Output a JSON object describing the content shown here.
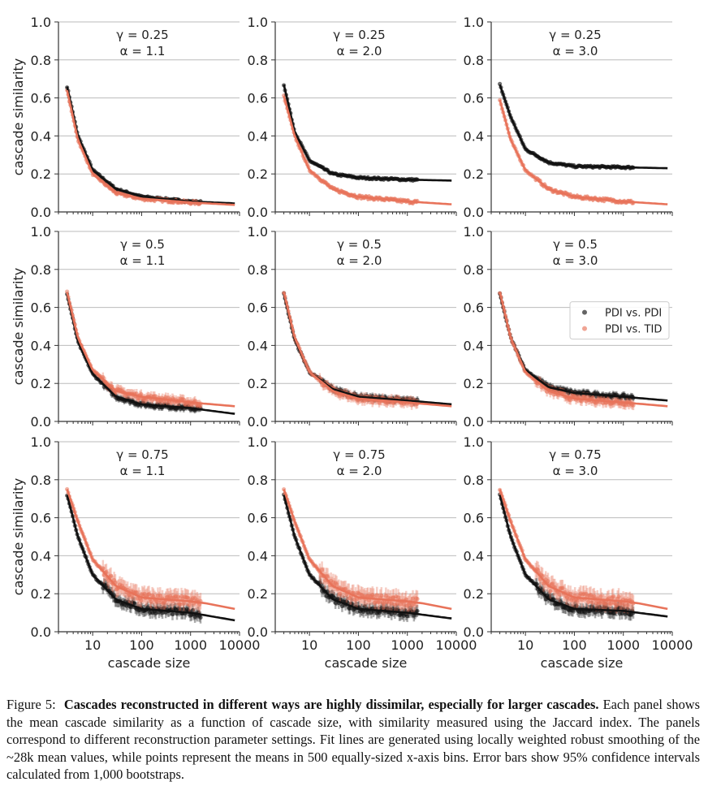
{
  "chart_data": [
    {
      "type": "line+scatter",
      "row": 0,
      "col": 0,
      "title_lines": [
        "γ = 0.25",
        "α = 1.1"
      ],
      "series": [
        {
          "name": "PDI vs. PDI",
          "color": "#111111",
          "x": [
            3,
            5,
            10,
            30,
            100,
            1000,
            8000
          ],
          "y": [
            0.66,
            0.4,
            0.22,
            0.12,
            0.08,
            0.055,
            0.045
          ]
        },
        {
          "name": "PDI vs. TID",
          "color": "#e8735a",
          "x": [
            3,
            5,
            10,
            30,
            100,
            1000,
            8000
          ],
          "y": [
            0.64,
            0.38,
            0.2,
            0.1,
            0.07,
            0.05,
            0.037
          ]
        }
      ]
    },
    {
      "type": "line+scatter",
      "row": 0,
      "col": 1,
      "title_lines": [
        "γ = 0.25",
        "α = 2.0"
      ],
      "series": [
        {
          "name": "PDI vs. PDI",
          "color": "#111111",
          "x": [
            3,
            5,
            10,
            30,
            100,
            1000,
            8000
          ],
          "y": [
            0.67,
            0.42,
            0.27,
            0.2,
            0.18,
            0.17,
            0.165
          ]
        },
        {
          "name": "PDI vs. TID",
          "color": "#e8735a",
          "x": [
            3,
            5,
            10,
            30,
            100,
            1000,
            8000
          ],
          "y": [
            0.61,
            0.4,
            0.22,
            0.12,
            0.08,
            0.055,
            0.04
          ]
        }
      ]
    },
    {
      "type": "line+scatter",
      "row": 0,
      "col": 2,
      "title_lines": [
        "γ = 0.25",
        "α = 3.0"
      ],
      "series": [
        {
          "name": "PDI vs. PDI",
          "color": "#111111",
          "x": [
            3,
            5,
            10,
            30,
            100,
            1000,
            8000
          ],
          "y": [
            0.67,
            0.5,
            0.33,
            0.26,
            0.24,
            0.235,
            0.23
          ]
        },
        {
          "name": "PDI vs. TID",
          "color": "#e8735a",
          "x": [
            3,
            5,
            10,
            30,
            100,
            1000,
            8000
          ],
          "y": [
            0.59,
            0.38,
            0.22,
            0.12,
            0.08,
            0.055,
            0.04
          ]
        }
      ]
    },
    {
      "type": "line+scatter",
      "row": 1,
      "col": 0,
      "title_lines": [
        "γ = 0.5",
        "α = 1.1"
      ],
      "series": [
        {
          "name": "PDI vs. PDI",
          "color": "#111111",
          "x": [
            3,
            5,
            10,
            30,
            100,
            1000,
            8000
          ],
          "y": [
            0.67,
            0.42,
            0.25,
            0.13,
            0.09,
            0.07,
            0.04
          ]
        },
        {
          "name": "PDI vs. TID",
          "color": "#e8735a",
          "x": [
            3,
            5,
            10,
            30,
            100,
            1000,
            8000
          ],
          "y": [
            0.68,
            0.44,
            0.27,
            0.16,
            0.13,
            0.1,
            0.08
          ]
        }
      ]
    },
    {
      "type": "line+scatter",
      "row": 1,
      "col": 1,
      "title_lines": [
        "γ = 0.5",
        "α = 2.0"
      ],
      "series": [
        {
          "name": "PDI vs. PDI",
          "color": "#111111",
          "x": [
            3,
            5,
            10,
            30,
            100,
            1000,
            8000
          ],
          "y": [
            0.67,
            0.43,
            0.26,
            0.17,
            0.13,
            0.11,
            0.09
          ]
        },
        {
          "name": "PDI vs. TID",
          "color": "#e8735a",
          "x": [
            3,
            5,
            10,
            30,
            100,
            1000,
            8000
          ],
          "y": [
            0.68,
            0.44,
            0.26,
            0.16,
            0.12,
            0.1,
            0.08
          ]
        }
      ]
    },
    {
      "type": "line+scatter",
      "row": 1,
      "col": 2,
      "title_lines": [
        "γ = 0.5",
        "α = 3.0"
      ],
      "legend": "center-right",
      "series": [
        {
          "name": "PDI vs. PDI",
          "color": "#111111",
          "x": [
            3,
            5,
            10,
            30,
            100,
            1000,
            8000
          ],
          "y": [
            0.67,
            0.44,
            0.27,
            0.18,
            0.15,
            0.13,
            0.11
          ]
        },
        {
          "name": "PDI vs. TID",
          "color": "#e8735a",
          "x": [
            3,
            5,
            10,
            30,
            100,
            1000,
            8000
          ],
          "y": [
            0.68,
            0.44,
            0.26,
            0.16,
            0.12,
            0.1,
            0.08
          ]
        }
      ]
    },
    {
      "type": "line+scatter",
      "row": 2,
      "col": 0,
      "title_lines": [
        "γ = 0.75",
        "α = 1.1"
      ],
      "series": [
        {
          "name": "PDI vs. PDI",
          "color": "#111111",
          "x": [
            3,
            5,
            10,
            30,
            100,
            1000,
            8000
          ],
          "y": [
            0.72,
            0.5,
            0.3,
            0.17,
            0.12,
            0.1,
            0.06
          ]
        },
        {
          "name": "PDI vs. TID",
          "color": "#e8735a",
          "x": [
            3,
            5,
            10,
            30,
            100,
            1000,
            2000,
            8000
          ],
          "y": [
            0.75,
            0.58,
            0.38,
            0.24,
            0.18,
            0.16,
            0.15,
            0.12
          ]
        }
      ]
    },
    {
      "type": "line+scatter",
      "row": 2,
      "col": 1,
      "title_lines": [
        "γ = 0.75",
        "α = 2.0"
      ],
      "series": [
        {
          "name": "PDI vs. PDI",
          "color": "#111111",
          "x": [
            3,
            5,
            10,
            30,
            100,
            1000,
            8000
          ],
          "y": [
            0.72,
            0.5,
            0.3,
            0.17,
            0.12,
            0.1,
            0.07
          ]
        },
        {
          "name": "PDI vs. TID",
          "color": "#e8735a",
          "x": [
            3,
            5,
            10,
            30,
            100,
            1000,
            2000,
            8000
          ],
          "y": [
            0.75,
            0.58,
            0.38,
            0.24,
            0.18,
            0.16,
            0.15,
            0.12
          ]
        }
      ]
    },
    {
      "type": "line+scatter",
      "row": 2,
      "col": 2,
      "title_lines": [
        "γ = 0.75",
        "α = 3.0"
      ],
      "series": [
        {
          "name": "PDI vs. PDI",
          "color": "#111111",
          "x": [
            3,
            5,
            10,
            30,
            100,
            1000,
            8000
          ],
          "y": [
            0.72,
            0.5,
            0.3,
            0.17,
            0.12,
            0.11,
            0.08
          ]
        },
        {
          "name": "PDI vs. TID",
          "color": "#e8735a",
          "x": [
            3,
            5,
            10,
            30,
            100,
            1000,
            2000,
            8000
          ],
          "y": [
            0.75,
            0.58,
            0.38,
            0.24,
            0.18,
            0.16,
            0.15,
            0.12
          ]
        }
      ]
    }
  ],
  "axes": {
    "xlabel": "cascade size",
    "ylabel": "cascade similarity",
    "xscale": "log",
    "xlim": [
      2,
      10000
    ],
    "ylim": [
      0,
      1.0
    ],
    "xticks": [
      "10",
      "100",
      "1000",
      "10000"
    ],
    "yticks": [
      "0.0",
      "0.2",
      "0.4",
      "0.6",
      "0.8",
      "1.0"
    ],
    "grid": "horizontal"
  },
  "legend": {
    "items": [
      "PDI vs. PDI",
      "PDI vs. TID"
    ]
  },
  "caption": {
    "label": "Figure 5:",
    "bold": "Cascades reconstructed in different ways are highly dissimilar, especially for larger cascades.",
    "text": "Each panel shows the mean cascade similarity as a function of cascade size, with similarity measured using the Jaccard index.  The panels correspond to different reconstruction parameter settings.  Fit lines are generated using locally weighted robust smoothing of the ~28k mean values, while points represent the means in 500 equally-sized x-axis bins.  Error bars show 95% confidence intervals calculated from 1,000 bootstraps."
  }
}
